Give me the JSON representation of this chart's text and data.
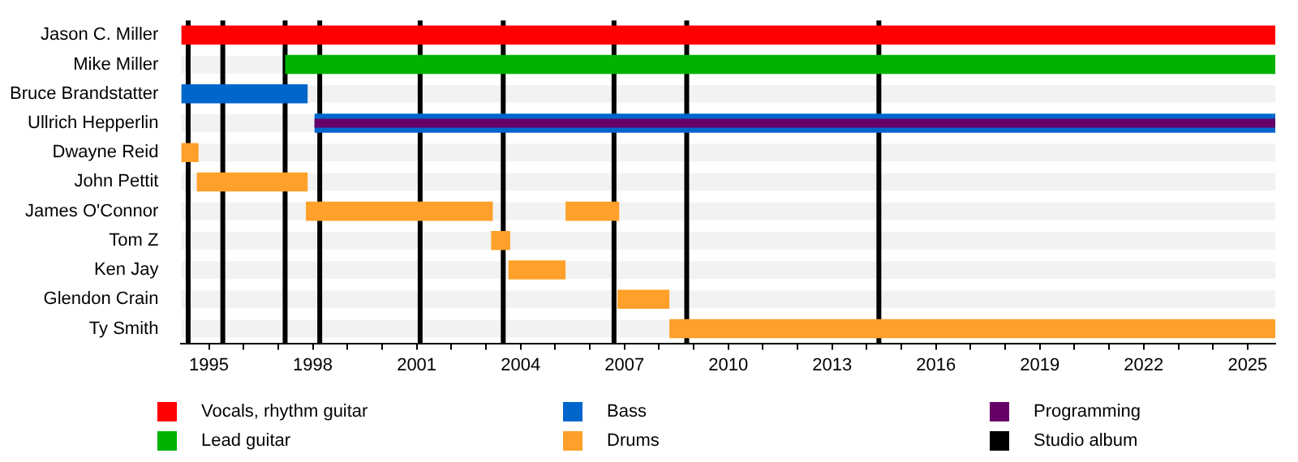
{
  "chart_data": {
    "type": "bar",
    "orientation": "horizontal",
    "legend": "bottom",
    "categories": [
      "Jason C. Miller",
      "Mike Miller",
      "Bruce Brandstatter",
      "Ullrich Hepperlin",
      "Dwayne Reid",
      "John Pettit",
      "James O'Connor",
      "Tom Z",
      "Ken Jay",
      "Glendon Crain",
      "Ty Smith"
    ],
    "series": [
      {
        "name": "Vocals, rhythm guitar",
        "color": "#ff0000",
        "base": [
          1994.2,
          null,
          null,
          null,
          null,
          null,
          null,
          null,
          null,
          null,
          null
        ],
        "values": [
          31.6,
          null,
          null,
          null,
          null,
          null,
          null,
          null,
          null,
          null,
          null
        ]
      },
      {
        "name": "Lead guitar",
        "color": "#00b300",
        "base": [
          null,
          1997.2,
          null,
          null,
          null,
          null,
          null,
          null,
          null,
          null,
          null
        ],
        "values": [
          null,
          28.6,
          null,
          null,
          null,
          null,
          null,
          null,
          null,
          null,
          null
        ]
      },
      {
        "name": "Bass",
        "color": "#0066cc",
        "base": [
          null,
          null,
          1994.2,
          1998.05,
          null,
          null,
          null,
          null,
          null,
          null,
          null
        ],
        "values": [
          null,
          null,
          3.65,
          27.75,
          null,
          null,
          null,
          null,
          null,
          null,
          null
        ]
      },
      {
        "name": "Drums",
        "color": "#ffa02a",
        "base": [
          null,
          null,
          null,
          null,
          1994.2,
          1994.65,
          1997.8,
          2003.15,
          2003.65,
          2006.8,
          2008.3
        ],
        "values": [
          null,
          null,
          null,
          null,
          0.5,
          3.2,
          5.4,
          0.55,
          1.65,
          1.5,
          17.5
        ]
      },
      {
        "name": "Programming",
        "color": "#660066",
        "base": [
          null,
          null,
          null,
          1998.05,
          null,
          null,
          null,
          null,
          null,
          null,
          null
        ],
        "values": [
          null,
          null,
          null,
          27.75,
          null,
          null,
          null,
          null,
          null,
          null,
          null
        ]
      },
      {
        "color": "#ffa02a",
        "base": [
          null,
          null,
          null,
          null,
          null,
          null,
          2005.3,
          null,
          null,
          null,
          null
        ],
        "values": [
          null,
          null,
          null,
          null,
          null,
          null,
          1.55,
          null,
          null,
          null,
          null
        ]
      }
    ],
    "xlim": [
      1994.2,
      2025.8
    ],
    "xticks": [
      {
        "value": 1995,
        "label": "1995"
      },
      {
        "value": 1996,
        "label": null
      },
      {
        "value": 1997,
        "label": null
      },
      {
        "value": 1998,
        "label": "1998"
      },
      {
        "value": 1999,
        "label": null
      },
      {
        "value": 2000,
        "label": null
      },
      {
        "value": 2001,
        "label": "2001"
      },
      {
        "value": 2002,
        "label": null
      },
      {
        "value": 2003,
        "label": null
      },
      {
        "value": 2004,
        "label": "2004"
      },
      {
        "value": 2005,
        "label": null
      },
      {
        "value": 2006,
        "label": null
      },
      {
        "value": 2007,
        "label": "2007"
      },
      {
        "value": 2008,
        "label": null
      },
      {
        "value": 2009,
        "label": null
      },
      {
        "value": 2010,
        "label": "2010"
      },
      {
        "value": 2011,
        "label": null
      },
      {
        "value": 2012,
        "label": null
      },
      {
        "value": 2013,
        "label": "2013"
      },
      {
        "value": 2014,
        "label": null
      },
      {
        "value": 2015,
        "label": null
      },
      {
        "value": 2016,
        "label": "2016"
      },
      {
        "value": 2017,
        "label": null
      },
      {
        "value": 2018,
        "label": null
      },
      {
        "value": 2019,
        "label": "2019"
      },
      {
        "value": 2020,
        "label": null
      },
      {
        "value": 2021,
        "label": null
      },
      {
        "value": 2022,
        "label": "2022"
      },
      {
        "value": 2023,
        "label": null
      },
      {
        "value": 2024,
        "label": null
      },
      {
        "value": 2025,
        "label": "2025"
      }
    ],
    "ref_lines": [
      {
        "axis": "x",
        "value": 1994.4,
        "label": "Studio album",
        "color": "#000000"
      },
      {
        "axis": "x",
        "value": 1995.4,
        "color": "#000000"
      },
      {
        "axis": "x",
        "value": 1997.2,
        "color": "#000000"
      },
      {
        "axis": "x",
        "value": 1998.2,
        "color": "#000000"
      },
      {
        "axis": "x",
        "value": 2001.1,
        "color": "#000000"
      },
      {
        "axis": "x",
        "value": 2003.5,
        "color": "#000000"
      },
      {
        "axis": "x",
        "value": 2006.7,
        "color": "#000000"
      },
      {
        "axis": "x",
        "value": 2008.8,
        "color": "#000000"
      },
      {
        "axis": "x",
        "value": 2014.35,
        "color": "#000000"
      }
    ]
  }
}
